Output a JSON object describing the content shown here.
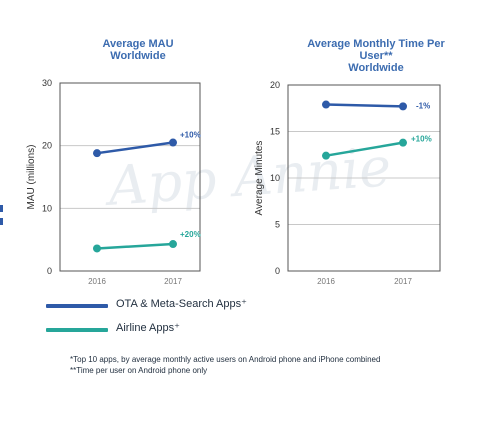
{
  "colors": {
    "ota": "#2e5aa8",
    "airline": "#26a69a",
    "title": "#3c6cb0",
    "axis": "#333333",
    "grid": "#c8c8c8",
    "watermark": "#e9edf1"
  },
  "watermark": "App Annie",
  "chart_data": [
    {
      "type": "line",
      "title": "Average MAU\nWorldwide",
      "xlabel": "",
      "ylabel": "MAU (millions)",
      "categories": [
        "2016",
        "2017"
      ],
      "ylim": [
        0,
        30
      ],
      "yticks": [
        0,
        10,
        20,
        30
      ],
      "grid": true,
      "series": [
        {
          "name": "OTA & Meta-Search Apps⁺",
          "values": [
            18.8,
            20.5
          ],
          "change_label": "+10%"
        },
        {
          "name": "Airline Apps⁺",
          "values": [
            3.6,
            4.3
          ],
          "change_label": "+20%"
        }
      ]
    },
    {
      "type": "line",
      "title": "Average Monthly Time Per\nUser**\nWorldwide",
      "xlabel": "",
      "ylabel": "Average Minutes",
      "categories": [
        "2016",
        "2017"
      ],
      "ylim": [
        0,
        20
      ],
      "yticks": [
        0,
        5,
        10,
        15,
        20
      ],
      "grid": true,
      "series": [
        {
          "name": "OTA & Meta-Search Apps⁺",
          "values": [
            17.9,
            17.7
          ],
          "change_label": "-1%"
        },
        {
          "name": "Airline Apps⁺",
          "values": [
            12.4,
            13.8
          ],
          "change_label": "+10%"
        }
      ]
    }
  ],
  "legend": {
    "items": [
      {
        "label": "OTA & Meta-Search Apps⁺",
        "color": "#2e5aa8"
      },
      {
        "label": "Airline Apps⁺",
        "color": "#26a69a"
      }
    ]
  },
  "footnotes": {
    "line1": "*Top 10 apps, by average monthly active users on Android phone and iPhone combined",
    "line2": "**Time per user on Android phone only"
  }
}
